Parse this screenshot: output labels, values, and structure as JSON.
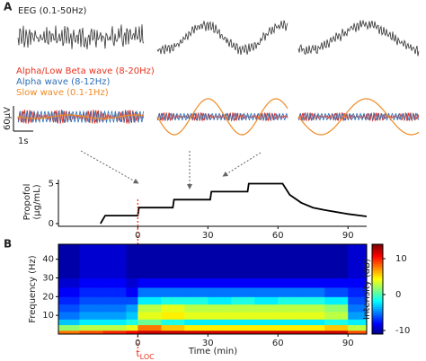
{
  "panels": {
    "a": "A",
    "b": "B"
  },
  "traces": {
    "title": "EEG (0.1-50Hz)",
    "legend": [
      {
        "name": "Alpha/Low Beta wave (8-20Hz)",
        "color": "#e8321e"
      },
      {
        "name": "Alpha wave (8-12Hz)",
        "color": "#2f6fb5"
      },
      {
        "name": "Slow wave (0.1-1Hz)",
        "color": "#f08a24"
      }
    ],
    "scale_v": "60μV",
    "scale_t": "1s"
  },
  "chart_data": [
    {
      "type": "line",
      "ylabel": [
        "Propofol",
        "(μg/mL)"
      ],
      "color": "#000000",
      "x": [
        -16,
        -14,
        0,
        0.5,
        15,
        15.5,
        31,
        31.5,
        47,
        47.5,
        62,
        65,
        70,
        75,
        80,
        90,
        98
      ],
      "values": [
        0,
        1,
        1,
        2,
        2,
        3,
        3,
        4,
        4,
        5,
        5,
        3.6,
        2.6,
        2,
        1.7,
        1.2,
        0.9
      ],
      "xlim": [
        -34,
        98
      ],
      "ylim": [
        0,
        5.5
      ],
      "xticks": [
        0,
        30,
        60,
        90
      ],
      "yticks": [
        0,
        5
      ],
      "loc_time": 0
    },
    {
      "type": "heatmap",
      "xlabel": "Time (min)",
      "ylabel": "Frequency (Hz)",
      "xlim": [
        -34,
        98
      ],
      "ylim": [
        0,
        48
      ],
      "xticks": [
        0,
        30,
        60,
        90
      ],
      "yticks": [
        10,
        20,
        30,
        40
      ],
      "x_edges": [
        -34,
        -25,
        -15,
        -5,
        0,
        10,
        20,
        30,
        40,
        50,
        60,
        70,
        80,
        90,
        98
      ],
      "y_edges": [
        0,
        2,
        5,
        8,
        12,
        16,
        20,
        25,
        30,
        40,
        48
      ],
      "values": [
        [
          8,
          9,
          10,
          11,
          12,
          12,
          12,
          12,
          12,
          12,
          12,
          12,
          12,
          9
        ],
        [
          2,
          3,
          3,
          4,
          8,
          6,
          5,
          5,
          5,
          5,
          5,
          5,
          6,
          3
        ],
        [
          -3,
          -2,
          -2,
          -1,
          1,
          -1,
          -2,
          -2,
          -2,
          -2,
          -2,
          -2,
          -1,
          -2
        ],
        [
          -5,
          -4,
          -4,
          -3,
          4,
          5,
          4,
          4,
          4,
          4,
          4,
          4,
          3,
          -4
        ],
        [
          -6,
          -5,
          -5,
          -4,
          3,
          4,
          3,
          3,
          3,
          3,
          3,
          3,
          2,
          -5
        ],
        [
          -7,
          -6,
          -6,
          -6,
          -2,
          -1,
          -1,
          -2,
          -1,
          -2,
          -1,
          -1,
          -2,
          -6
        ],
        [
          -8,
          -7,
          -7,
          -8,
          -5,
          -5,
          -5,
          -5,
          -5,
          -5,
          -5,
          -5,
          -6,
          -7
        ],
        [
          -9,
          -8,
          -8,
          -9,
          -8,
          -8,
          -8,
          -8,
          -8,
          -8,
          -8,
          -8,
          -8,
          -8
        ],
        [
          -10,
          -9,
          -9,
          -10,
          -10,
          -10,
          -10,
          -10,
          -10,
          -10,
          -10,
          -10,
          -10,
          -9
        ],
        [
          -10,
          -9,
          -9,
          -10,
          -10,
          -10,
          -10,
          -10,
          -10,
          -10,
          -10,
          -10,
          -10,
          -9
        ]
      ],
      "clim": [
        -11,
        14
      ],
      "colorbar_label": "Intensity (dB)",
      "colorbar_ticks": [
        -10,
        0,
        10
      ],
      "loc_label": "t",
      "loc_sub": "LOC",
      "loc_color": "#e8321e"
    }
  ]
}
